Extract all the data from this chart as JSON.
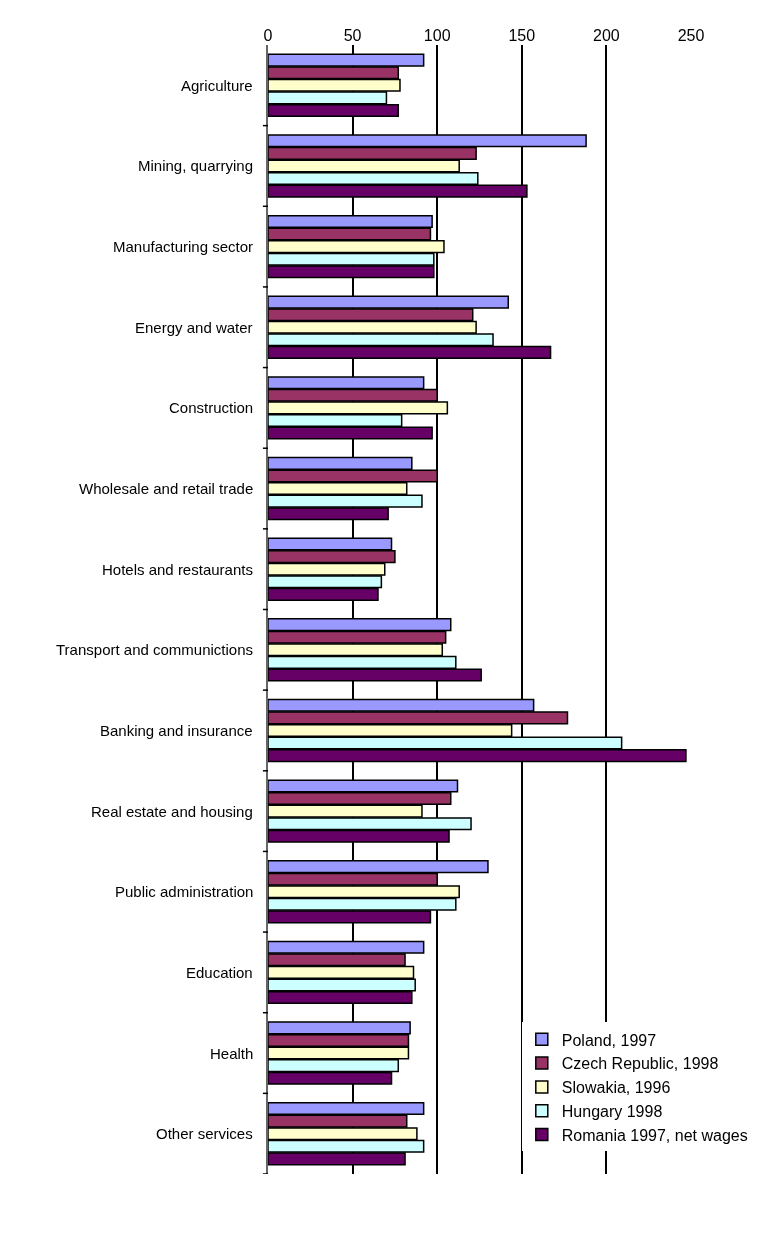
{
  "chart_data": {
    "type": "bar",
    "orientation": "horizontal",
    "categories": [
      "Agriculture",
      "Mining, quarrying",
      "Manufacturing sector",
      "Energy and water",
      "Construction",
      "Wholesale and retail trade",
      "Hotels and restaurants",
      "Transport and communictions",
      "Banking and insurance",
      "Real estate and housing",
      "Public administration",
      "Education",
      "Health",
      "Other services"
    ],
    "series": [
      {
        "name": "Poland, 1997",
        "color": "#9999ff",
        "values": [
          92,
          188,
          97,
          142,
          92,
          85,
          73,
          108,
          157,
          112,
          130,
          92,
          84,
          92
        ]
      },
      {
        "name": "Czech Republic, 1998",
        "color": "#993366",
        "values": [
          77,
          123,
          96,
          121,
          100,
          100,
          75,
          105,
          177,
          108,
          100,
          81,
          83,
          82
        ]
      },
      {
        "name": "Slowakia, 1996",
        "color": "#ffffcc",
        "values": [
          78,
          113,
          104,
          123,
          106,
          82,
          69,
          103,
          144,
          91,
          113,
          86,
          83,
          88
        ]
      },
      {
        "name": "Hungary 1998",
        "color": "#ccffff",
        "values": [
          70,
          124,
          98,
          133,
          79,
          91,
          67,
          111,
          209,
          120,
          111,
          87,
          77,
          92
        ]
      },
      {
        "name": "Romania 1997, net wages",
        "color": "#660066",
        "values": [
          77,
          153,
          98,
          167,
          97,
          71,
          65,
          126,
          247,
          107,
          96,
          85,
          73,
          81
        ]
      }
    ],
    "xlim": [
      0,
      250
    ],
    "xticks": [
      0,
      50,
      100,
      150,
      200,
      250
    ],
    "grid": "x",
    "legend": "bottom right"
  }
}
